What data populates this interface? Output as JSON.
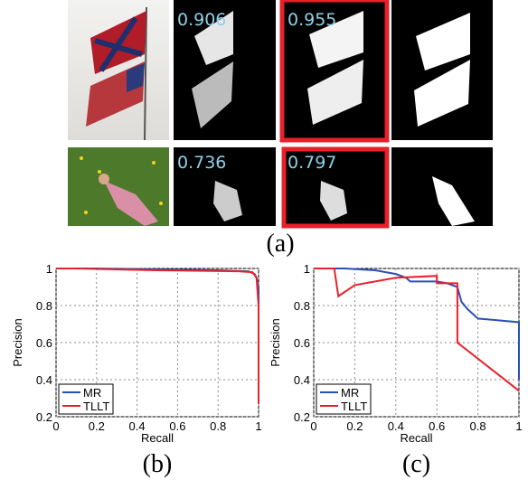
{
  "panel_a": {
    "scores": [
      0.906,
      0.955,
      0.736,
      0.797
    ],
    "caption": "(a)"
  },
  "chart_data": [
    {
      "type": "line",
      "caption": "(b)",
      "xlabel": "Recall",
      "ylabel": "Precision",
      "xlim": [
        0,
        1
      ],
      "ylim": [
        0.2,
        1
      ],
      "xticks": [
        0,
        0.2,
        0.4,
        0.6,
        0.8,
        1
      ],
      "yticks": [
        0.2,
        0.4,
        0.6,
        0.8,
        1
      ],
      "grid": true,
      "legend": "lower left",
      "series": [
        {
          "name": "MR",
          "color": "#2b4fb8",
          "x": [
            0,
            0.2,
            0.5,
            0.8,
            0.95,
            0.98,
            0.99,
            1,
            1
          ],
          "values": [
            1,
            1,
            0.995,
            0.99,
            0.985,
            0.97,
            0.95,
            0.9,
            0.5
          ]
        },
        {
          "name": "TLLT",
          "color": "#e8202a",
          "x": [
            0,
            0.1,
            0.5,
            0.9,
            0.97,
            0.99,
            1,
            1
          ],
          "values": [
            1,
            1,
            0.99,
            0.985,
            0.98,
            0.95,
            0.8,
            0.27
          ]
        }
      ]
    },
    {
      "type": "line",
      "caption": "(c)",
      "xlabel": "Recall",
      "ylabel": "Precision",
      "xlim": [
        0,
        1
      ],
      "ylim": [
        0.2,
        1
      ],
      "xticks": [
        0,
        0.2,
        0.4,
        0.6,
        0.8,
        1
      ],
      "yticks": [
        0.2,
        0.4,
        0.6,
        0.8,
        1
      ],
      "grid": true,
      "legend": "lower left",
      "series": [
        {
          "name": "MR",
          "color": "#2b4fb8",
          "x": [
            0,
            0.15,
            0.3,
            0.4,
            0.45,
            0.47,
            0.6,
            0.65,
            0.7,
            0.72,
            0.75,
            0.8,
            0.9,
            1,
            1
          ],
          "values": [
            1,
            1,
            0.99,
            0.97,
            0.95,
            0.93,
            0.93,
            0.92,
            0.9,
            0.82,
            0.78,
            0.73,
            0.72,
            0.71,
            0.4
          ]
        },
        {
          "name": "TLLT",
          "color": "#e8202a",
          "x": [
            0,
            0.1,
            0.12,
            0.2,
            0.4,
            0.6,
            0.6,
            0.7,
            0.7,
            1
          ],
          "values": [
            1,
            1,
            0.85,
            0.91,
            0.95,
            0.96,
            0.92,
            0.92,
            0.6,
            0.34
          ]
        }
      ]
    }
  ]
}
